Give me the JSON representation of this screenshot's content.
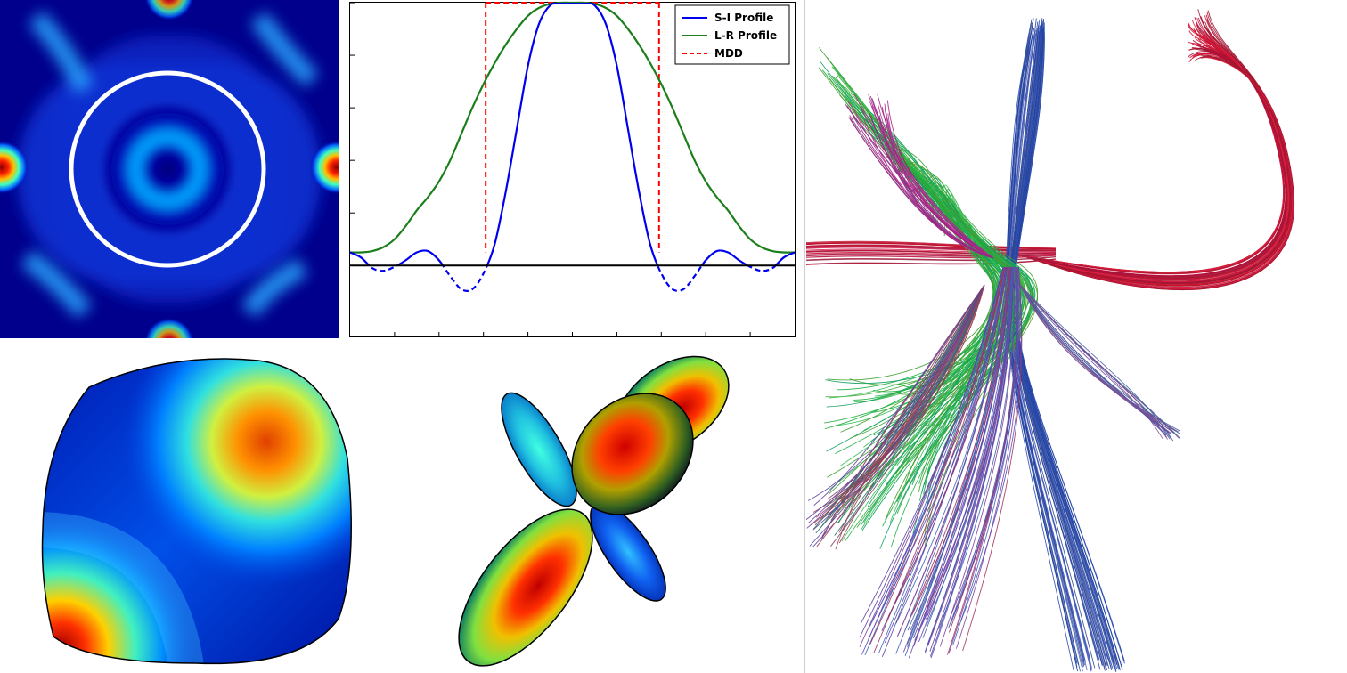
{
  "figure": {
    "panels": [
      {
        "id": "odf-heatmap",
        "kind": "image"
      },
      {
        "id": "profile-plot",
        "kind": "chart"
      },
      {
        "id": "odf-glyph-smooth",
        "kind": "image"
      },
      {
        "id": "odf-glyph-lobes",
        "kind": "image"
      },
      {
        "id": "tractography",
        "kind": "image"
      }
    ]
  },
  "colors": {
    "si_profile": "#0000ee",
    "lr_profile": "#1a7f1a",
    "mdd": "#ff0000",
    "baseline": "#000000",
    "heat_low": "#00008f",
    "heat_mid": "#00ffff",
    "heat_high": "#ff0000"
  },
  "chart_data": {
    "type": "line",
    "title": "",
    "xlabel": "",
    "ylabel": "",
    "xlim": [
      -1,
      1
    ],
    "ylim": [
      -0.27,
      1.0
    ],
    "x_ticks": [
      -0.8,
      -0.6,
      -0.4,
      -0.2,
      0.0,
      0.2,
      0.4,
      0.6,
      0.8
    ],
    "y_ticks": [
      0.0,
      0.2,
      0.4,
      0.6,
      0.8,
      1.0
    ],
    "tick_labels_visible": false,
    "legend": {
      "position": "top-right",
      "entries": [
        "S-I Profile",
        "L-R Profile",
        "MDD"
      ]
    },
    "series": [
      {
        "name": "S-I Profile",
        "style": "solid-positive/dashed-negative",
        "x": [
          -1.0,
          -0.95,
          -0.9,
          -0.85,
          -0.8,
          -0.75,
          -0.7,
          -0.65,
          -0.6,
          -0.55,
          -0.5,
          -0.45,
          -0.4,
          -0.35,
          -0.3,
          -0.25,
          -0.2,
          -0.15,
          -0.1,
          -0.05,
          0.0,
          0.05,
          0.1,
          0.15,
          0.2,
          0.25,
          0.3,
          0.35,
          0.4,
          0.45,
          0.5,
          0.55,
          0.6,
          0.65,
          0.7,
          0.75,
          0.8,
          0.85,
          0.9,
          0.95,
          1.0
        ],
        "y": [
          0.05,
          0.03,
          -0.01,
          -0.02,
          -0.005,
          0.02,
          0.05,
          0.055,
          0.02,
          -0.04,
          -0.09,
          -0.09,
          -0.03,
          0.08,
          0.28,
          0.52,
          0.76,
          0.92,
          0.99,
          1.0,
          1.0,
          1.0,
          0.99,
          0.92,
          0.76,
          0.52,
          0.28,
          0.08,
          -0.03,
          -0.09,
          -0.09,
          -0.04,
          0.02,
          0.055,
          0.05,
          0.02,
          -0.005,
          -0.02,
          -0.01,
          0.03,
          0.05
        ]
      },
      {
        "name": "L-R Profile",
        "x": [
          -1.0,
          -0.95,
          -0.9,
          -0.85,
          -0.8,
          -0.75,
          -0.7,
          -0.65,
          -0.6,
          -0.55,
          -0.5,
          -0.45,
          -0.4,
          -0.35,
          -0.3,
          -0.25,
          -0.2,
          -0.15,
          -0.1,
          -0.05,
          0.0,
          0.05,
          0.1,
          0.15,
          0.2,
          0.25,
          0.3,
          0.35,
          0.4,
          0.45,
          0.5,
          0.55,
          0.6,
          0.65,
          0.7,
          0.75,
          0.8,
          0.85,
          0.9,
          0.95,
          1.0
        ],
        "y": [
          0.05,
          0.05,
          0.055,
          0.07,
          0.1,
          0.15,
          0.21,
          0.26,
          0.32,
          0.4,
          0.5,
          0.6,
          0.69,
          0.77,
          0.84,
          0.9,
          0.95,
          0.98,
          0.995,
          1.0,
          1.0,
          1.0,
          0.995,
          0.98,
          0.95,
          0.9,
          0.84,
          0.77,
          0.69,
          0.6,
          0.5,
          0.4,
          0.32,
          0.26,
          0.21,
          0.15,
          0.1,
          0.07,
          0.055,
          0.05,
          0.05
        ]
      }
    ],
    "mdd_lines_x": [
      -0.39,
      0.39
    ],
    "mdd_top_y": 1.0,
    "baseline_y": 0.0
  }
}
